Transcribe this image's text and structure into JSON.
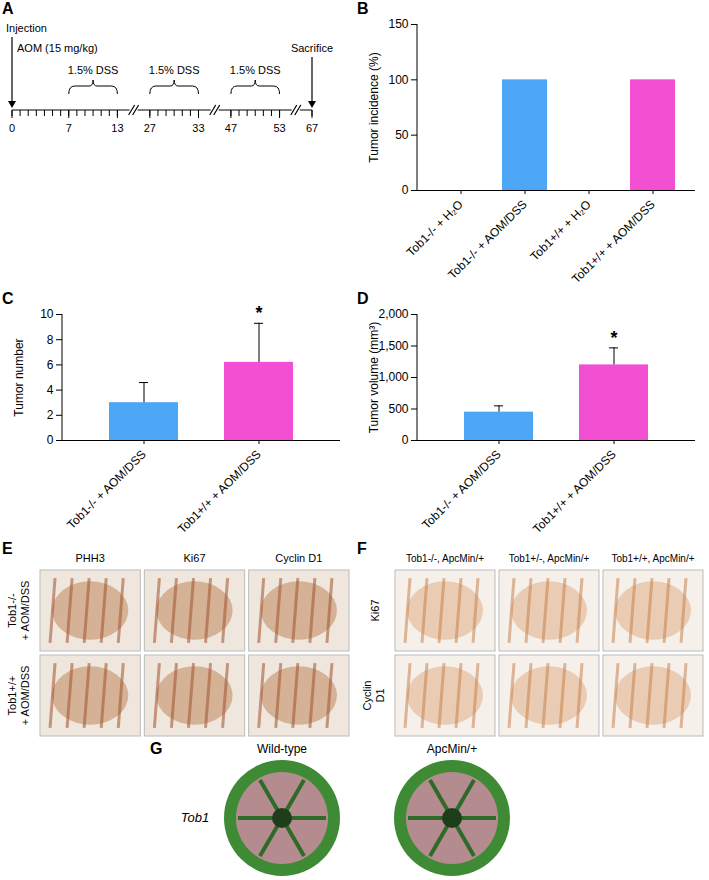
{
  "chart_data": [
    {
      "title": "B",
      "type": "bar",
      "categories": [
        "Tob1-/- + H₂O",
        "Tob1-/- + AOM/DSS",
        "Tob1+/+ + H₂O",
        "Tob1+/+ + AOM/DSS"
      ],
      "values": [
        0,
        100,
        0,
        100
      ],
      "colors": [
        "#4ea6f7",
        "#4ea6f7",
        "#f24fd3",
        "#f24fd3"
      ],
      "ylabel": "Tumor incidence (%)",
      "ylim": [
        0,
        150
      ],
      "yticks": [
        0,
        50,
        100,
        150
      ]
    },
    {
      "title": "C",
      "type": "bar",
      "categories": [
        "Tob1-/- + AOM/DSS",
        "Tob1+/+ + AOM/DSS"
      ],
      "values": [
        3.0,
        6.2
      ],
      "errors": [
        1.6,
        3.1
      ],
      "colors": [
        "#4ea6f7",
        "#f24fd3"
      ],
      "ylabel": "Tumor number",
      "ylim": [
        0,
        10
      ],
      "yticks": [
        0,
        2,
        4,
        6,
        8,
        10
      ],
      "annotations": [
        {
          "category": "Tob1+/+ + AOM/DSS",
          "text": "*"
        }
      ]
    },
    {
      "title": "D",
      "type": "bar",
      "categories": [
        "Tob1-/- + AOM/DSS",
        "Tob1+/+ + AOM/DSS"
      ],
      "values": [
        450,
        1200
      ],
      "errors": [
        100,
        270
      ],
      "colors": [
        "#4ea6f7",
        "#f24fd3"
      ],
      "ylabel": "Tumor volume (mm³)",
      "ylim": [
        0,
        2000
      ],
      "yticks": [
        0,
        500,
        1000,
        1500,
        2000
      ],
      "annotations": [
        {
          "category": "Tob1+/+ + AOM/DSS",
          "text": "*"
        }
      ]
    }
  ],
  "timeline": {
    "panel": "A",
    "start_label": "Injection",
    "injection": "AOM (15 mg/kg)",
    "end_label": "Sacrifice",
    "days": [
      0,
      7,
      13,
      27,
      33,
      47,
      53,
      67
    ],
    "dss_periods": [
      [
        7,
        13
      ],
      [
        27,
        33
      ],
      [
        47,
        53
      ]
    ],
    "dss_label": "1.5% DSS",
    "breaks": [
      [
        13,
        27
      ],
      [
        33,
        47
      ],
      [
        53,
        67
      ]
    ]
  },
  "image_panels": [
    {
      "panel": "E",
      "columns": [
        "PHH3",
        "Ki67",
        "Cyclin D1"
      ],
      "rows": [
        "Tob1-/- + AOM/DSS",
        "Tob1+/+ + AOM/DSS"
      ]
    },
    {
      "panel": "F",
      "columns": [
        "Tob1-/-, ApcMin/+",
        "Tob1+/-, ApcMin/+",
        "Tob1+/+, ApcMin/+"
      ],
      "rows": [
        "Ki67",
        "Cyclin D1"
      ]
    },
    {
      "panel": "G",
      "columns": [
        "Wild-type",
        "ApcMin/+"
      ],
      "rows": [
        "Tob1"
      ]
    }
  ]
}
